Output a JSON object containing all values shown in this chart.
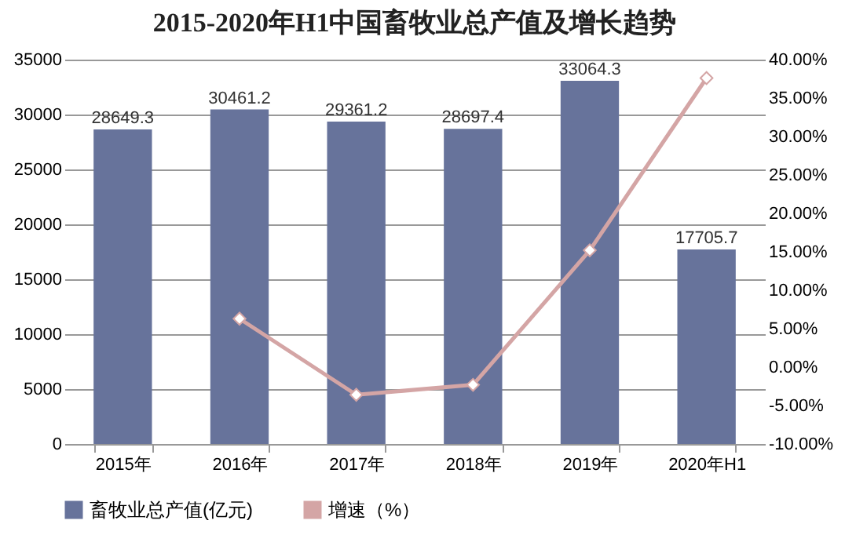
{
  "chart_data": {
    "type": "bar",
    "title": "2015-2020年H1中国畜牧业总产值及增长趋势",
    "categories": [
      "2015年",
      "2016年",
      "2017年",
      "2018年",
      "2019年",
      "2020年H1"
    ],
    "series": [
      {
        "name": "畜牧业总产值(亿元)",
        "color": "#67739b",
        "values": [
          28649.3,
          30461.2,
          29361.2,
          28697.4,
          33064.3,
          17705.7
        ],
        "value_labels": [
          "28649.3",
          "30461.2",
          "29361.2",
          "28697.4",
          "33064.3",
          "17705.7"
        ]
      },
      {
        "name": "增速（%）",
        "type": "line",
        "axis": "y2",
        "color": "#d4a5a5",
        "marker": "diamond",
        "values": [
          null,
          6.3,
          -3.6,
          -2.3,
          15.2,
          37.6
        ]
      }
    ],
    "ylim": [
      0,
      35000
    ],
    "yticks": [
      0,
      5000,
      10000,
      15000,
      20000,
      25000,
      30000,
      35000
    ],
    "y2lim": [
      -10,
      40
    ],
    "y2ticks": [
      {
        "value": -10,
        "label": "-10.00%"
      },
      {
        "value": -5,
        "label": "-5.00%"
      },
      {
        "value": 0,
        "label": "0.00%"
      },
      {
        "value": 5,
        "label": "5.00%"
      },
      {
        "value": 10,
        "label": "10.00%"
      },
      {
        "value": 15,
        "label": "15.00%"
      },
      {
        "value": 20,
        "label": "20.00%"
      },
      {
        "value": 25,
        "label": "25.00%"
      },
      {
        "value": 30,
        "label": "30.00%"
      },
      {
        "value": 35,
        "label": "35.00%"
      },
      {
        "value": 40,
        "label": "40.00%"
      }
    ],
    "grid": "y",
    "legend": "bottom"
  }
}
